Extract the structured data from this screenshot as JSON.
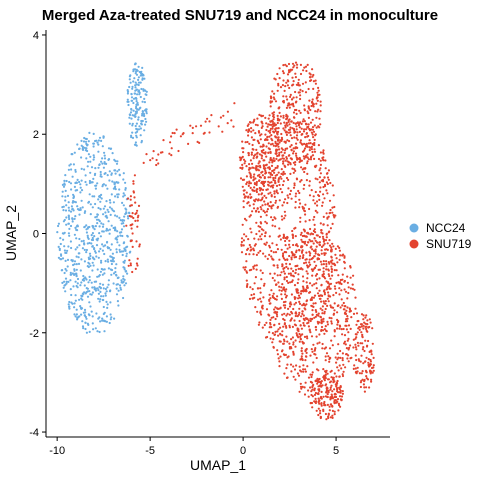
{
  "chart_data": {
    "type": "scatter",
    "title": "Merged Aza-treated SNU719 and NCC24 in monoculture",
    "xlabel": "UMAP_1",
    "ylabel": "UMAP_2",
    "xlim": [
      -10.6,
      7.9
    ],
    "ylim": [
      -4.1,
      4.1
    ],
    "x_ticks": [
      -10,
      -5,
      0,
      5
    ],
    "y_ticks": [
      -4,
      -2,
      0,
      2,
      4
    ],
    "x_tick_labels": [
      "-10",
      "-5",
      "0",
      "5"
    ],
    "y_tick_labels": [
      "-4",
      "-2",
      "0",
      "2",
      "4"
    ],
    "grid": false,
    "legend_position": "right",
    "series": [
      {
        "name": "NCC24",
        "color": "#6aaee3",
        "approx_points": 900,
        "clusters": [
          {
            "shape": "ellipse",
            "cx": -8.0,
            "cy": 0.0,
            "rx": 2.0,
            "ry": 2.05,
            "weight": 0.82
          },
          {
            "shape": "ellipse",
            "cx": -5.7,
            "cy": 2.6,
            "rx": 0.55,
            "ry": 0.85,
            "weight": 0.18
          }
        ]
      },
      {
        "name": "SNU719",
        "color": "#e3432f",
        "approx_points": 2400,
        "clusters": [
          {
            "shape": "ellipse",
            "cx": 2.5,
            "cy": 0.0,
            "rx": 2.6,
            "ry": 2.4,
            "weight": 0.32
          },
          {
            "shape": "ellipse",
            "cx": 3.8,
            "cy": -1.6,
            "rx": 2.4,
            "ry": 1.7,
            "weight": 0.26
          },
          {
            "shape": "ellipse",
            "cx": 2.8,
            "cy": 2.4,
            "rx": 1.4,
            "ry": 1.2,
            "weight": 0.14
          },
          {
            "shape": "ellipse",
            "cx": 4.5,
            "cy": -3.3,
            "rx": 0.9,
            "ry": 0.45,
            "weight": 0.07
          },
          {
            "shape": "ellipse",
            "cx": 6.5,
            "cy": -2.4,
            "rx": 0.6,
            "ry": 0.8,
            "weight": 0.05
          },
          {
            "shape": "ellipse",
            "cx": 1.0,
            "cy": 1.4,
            "rx": 1.2,
            "ry": 1.0,
            "weight": 0.12
          },
          {
            "shape": "bridge",
            "from": [
              -5.4,
              1.5
            ],
            "to": [
              -0.5,
              2.4
            ],
            "spread": 0.25,
            "weight": 0.02
          },
          {
            "shape": "ellipse",
            "cx": -5.9,
            "cy": 0.1,
            "rx": 0.4,
            "ry": 1.1,
            "weight": 0.02
          }
        ]
      }
    ]
  }
}
